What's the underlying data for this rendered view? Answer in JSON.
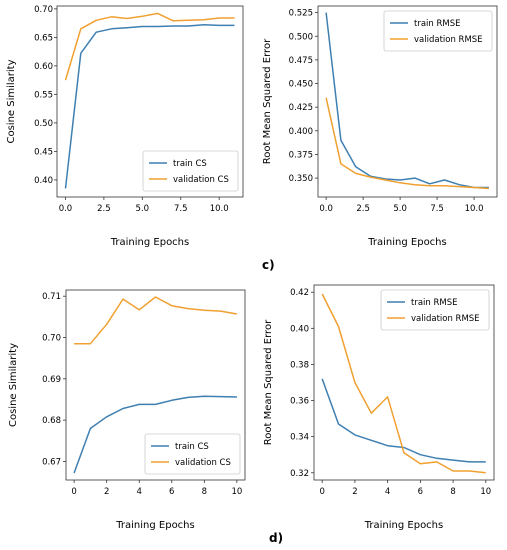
{
  "colors": {
    "blue": "#3e7fb1",
    "orange": "#f0a030"
  },
  "panel_labels": {
    "c": "c)",
    "d": "d)"
  },
  "chart_data": [
    {
      "type": "line",
      "xlabel": "Training Epochs",
      "ylabel": "Cosine Similarity",
      "xlim": [
        -0.55,
        11.55
      ],
      "ylim": [
        0.37,
        0.705
      ],
      "xticks": [
        0,
        2.5,
        5,
        7.5,
        10
      ],
      "xtick_labels": [
        "0.0",
        "2.5",
        "5.0",
        "7.5",
        "10.0"
      ],
      "yticks": [
        0.4,
        0.45,
        0.5,
        0.55,
        0.6,
        0.65,
        0.7
      ],
      "ytick_labels": [
        "0.40",
        "0.45",
        "0.50",
        "0.55",
        "0.60",
        "0.65",
        "0.70"
      ],
      "legend_position": "lower right",
      "x": [
        0,
        1,
        2,
        3,
        4,
        5,
        6,
        7,
        8,
        9,
        10,
        11
      ],
      "series": [
        {
          "name": "train CS",
          "color": "#3e7fb1",
          "values": [
            0.385,
            0.622,
            0.659,
            0.665,
            0.667,
            0.669,
            0.669,
            0.67,
            0.67,
            0.672,
            0.671,
            0.671
          ]
        },
        {
          "name": "validation CS",
          "color": "#f0a030",
          "values": [
            0.575,
            0.665,
            0.68,
            0.686,
            0.683,
            0.687,
            0.692,
            0.679,
            0.68,
            0.681,
            0.684,
            0.684
          ]
        }
      ]
    },
    {
      "type": "line",
      "xlabel": "Training Epochs",
      "ylabel": "Root Mean Squared Error",
      "xlim": [
        -0.55,
        11.55
      ],
      "ylim": [
        0.33,
        0.532
      ],
      "xticks": [
        0,
        2.5,
        5,
        7.5,
        10
      ],
      "xtick_labels": [
        "0.0",
        "2.5",
        "5.0",
        "7.5",
        "10.0"
      ],
      "yticks": [
        0.35,
        0.375,
        0.4,
        0.425,
        0.45,
        0.475,
        0.5,
        0.525
      ],
      "ytick_labels": [
        "0.350",
        "0.375",
        "0.400",
        "0.425",
        "0.450",
        "0.475",
        "0.500",
        "0.525"
      ],
      "legend_position": "upper right",
      "x": [
        0,
        1,
        2,
        3,
        4,
        5,
        6,
        7,
        8,
        9,
        10,
        11
      ],
      "series": [
        {
          "name": "train RMSE",
          "color": "#3e7fb1",
          "values": [
            0.525,
            0.39,
            0.362,
            0.352,
            0.349,
            0.348,
            0.35,
            0.344,
            0.348,
            0.343,
            0.34,
            0.34
          ]
        },
        {
          "name": "validation RMSE",
          "color": "#f0a030",
          "values": [
            0.435,
            0.365,
            0.355,
            0.351,
            0.348,
            0.345,
            0.343,
            0.342,
            0.342,
            0.341,
            0.34,
            0.339
          ]
        }
      ]
    },
    {
      "type": "line",
      "xlabel": "Training Epochs",
      "ylabel": "Cosine Similarity",
      "xlim": [
        -0.5,
        10.5
      ],
      "ylim": [
        0.6655,
        0.7115
      ],
      "xticks": [
        0,
        2,
        4,
        6,
        8,
        10
      ],
      "xtick_labels": [
        "0",
        "2",
        "4",
        "6",
        "8",
        "10"
      ],
      "yticks": [
        0.67,
        0.68,
        0.69,
        0.7,
        0.71
      ],
      "ytick_labels": [
        "0.67",
        "0.68",
        "0.69",
        "0.70",
        "0.71"
      ],
      "legend_position": "lower right",
      "x": [
        0,
        1,
        2,
        3,
        4,
        5,
        6,
        7,
        8,
        9,
        10
      ],
      "series": [
        {
          "name": "train CS",
          "color": "#3e7fb1",
          "values": [
            0.6672,
            0.678,
            0.6808,
            0.6828,
            0.6838,
            0.6838,
            0.6848,
            0.6855,
            0.6858,
            0.6857,
            0.6856
          ]
        },
        {
          "name": "validation CS",
          "color": "#f0a030",
          "values": [
            0.6985,
            0.6985,
            0.7032,
            0.7093,
            0.7067,
            0.7098,
            0.7077,
            0.707,
            0.7066,
            0.7064,
            0.7057
          ]
        }
      ]
    },
    {
      "type": "line",
      "xlabel": "Training Epochs",
      "ylabel": "Root Mean Squared Error",
      "xlim": [
        -0.5,
        10.5
      ],
      "ylim": [
        0.316,
        0.424
      ],
      "xticks": [
        0,
        2,
        4,
        6,
        8,
        10
      ],
      "xtick_labels": [
        "0",
        "2",
        "4",
        "6",
        "8",
        "10"
      ],
      "yticks": [
        0.32,
        0.34,
        0.36,
        0.38,
        0.4,
        0.42
      ],
      "ytick_labels": [
        "0.32",
        "0.34",
        "0.36",
        "0.38",
        "0.40",
        "0.42"
      ],
      "legend_position": "upper right",
      "x": [
        0,
        1,
        2,
        3,
        4,
        5,
        6,
        7,
        8,
        9,
        10
      ],
      "series": [
        {
          "name": "train RMSE",
          "color": "#3e7fb1",
          "values": [
            0.372,
            0.347,
            0.341,
            0.338,
            0.335,
            0.334,
            0.33,
            0.328,
            0.327,
            0.326,
            0.326
          ]
        },
        {
          "name": "validation RMSE",
          "color": "#f0a030",
          "values": [
            0.419,
            0.401,
            0.37,
            0.353,
            0.362,
            0.331,
            0.325,
            0.326,
            0.321,
            0.321,
            0.32
          ]
        }
      ]
    }
  ]
}
